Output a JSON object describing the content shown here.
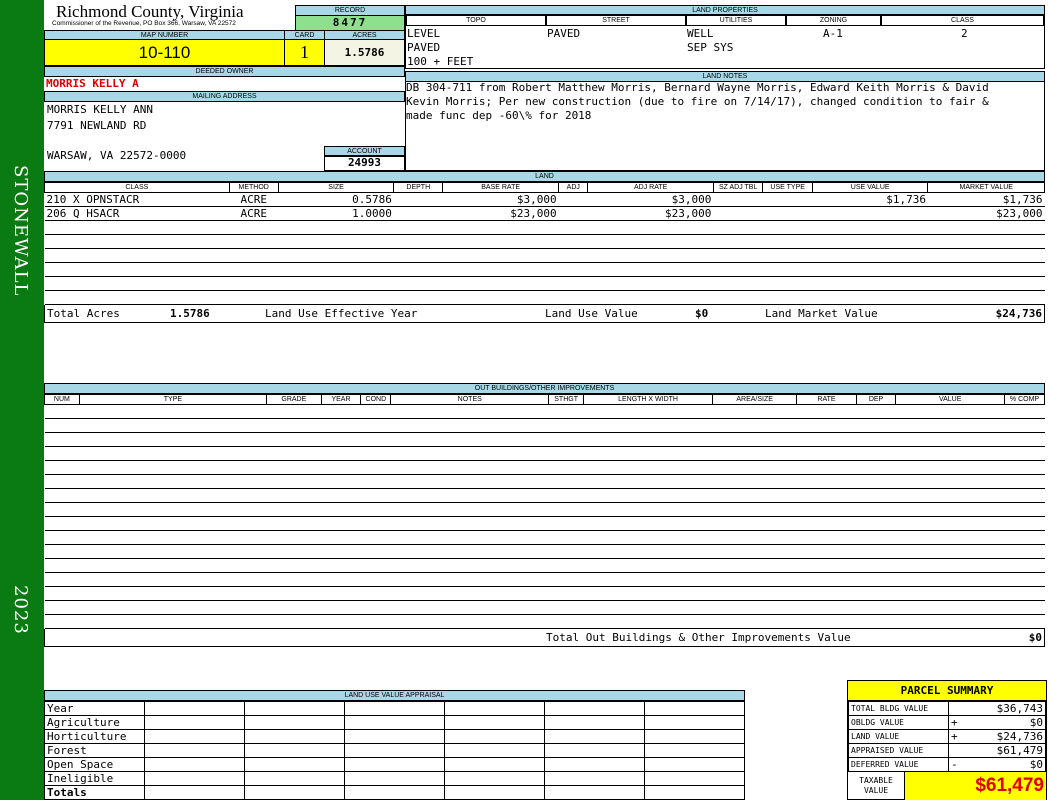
{
  "sidebar": {
    "district": "STONEWALL",
    "year": "2023"
  },
  "header": {
    "county": "Richmond County, Virginia",
    "office": "Commissioner of the Revenue, PO Box 366, Warsaw, VA 22572",
    "record_label": "RECORD",
    "record": "8477",
    "map_label": "MAP NUMBER",
    "map": "10-110",
    "card_label": "CARD",
    "card": "1",
    "acres_label": "ACRES",
    "acres": "1.5786"
  },
  "land_properties": {
    "title": "LAND PROPERTIES",
    "columns": [
      "TOPO",
      "STREET",
      "UTILITIES",
      "ZONING",
      "CLASS"
    ],
    "topo": [
      "LEVEL",
      "PAVED",
      "100 + FEET"
    ],
    "street": "PAVED",
    "utilities": [
      "WELL",
      "SEP SYS"
    ],
    "zoning": "A-1",
    "class": "2"
  },
  "owner": {
    "label": "DEEDED OWNER",
    "name": "MORRIS KELLY A",
    "mailing_label": "MAILING ADDRESS",
    "address": [
      "MORRIS KELLY ANN",
      "7791 NEWLAND RD",
      "",
      "WARSAW, VA 22572-0000"
    ],
    "account_label": "ACCOUNT",
    "account": "24993"
  },
  "land_notes": {
    "title": "LAND NOTES",
    "text": "DB 304-711 from Robert Matthew Morris, Bernard Wayne Morris, Edward Keith Morris & David Kevin Morris; Per new construction (due to fire on 7/14/17), changed condition to fair & made func dep -60\\% for 2018"
  },
  "land": {
    "title": "LAND",
    "columns": [
      "CLASS",
      "METHOD",
      "SIZE",
      "DEPTH",
      "BASE RATE",
      "ADJ",
      "ADJ RATE",
      "SZ ADJ TBL",
      "USE TYPE",
      "USE VALUE",
      "MARKET VALUE"
    ],
    "rows": [
      [
        "210 X OPNSTACR",
        "ACRE",
        "0.5786",
        "",
        "$3,000",
        "",
        "$3,000",
        "",
        "",
        "$1,736",
        "$1,736"
      ],
      [
        "206 Q HSACR",
        "ACRE",
        "1.0000",
        "",
        "$23,000",
        "",
        "$23,000",
        "",
        "",
        "",
        "$23,000"
      ]
    ],
    "total_acres_label": "Total Acres",
    "total_acres": "1.5786",
    "eff_year_label": "Land Use Effective Year",
    "use_value_label": "Land Use Value",
    "use_value": "$0",
    "market_label": "Land Market Value",
    "market": "$24,736"
  },
  "outbuildings": {
    "title": "OUT BUILDINGS/OTHER IMPROVEMENTS",
    "columns": [
      "NUM",
      "TYPE",
      "GRADE",
      "YEAR",
      "COND",
      "NOTES",
      "STHGT",
      "LENGTH X WIDTH",
      "AREA/SIZE",
      "RATE",
      "DEP",
      "VALUE",
      "% COMP"
    ],
    "total_label": "Total Out Buildings & Other Improvements Value",
    "total": "$0"
  },
  "land_use": {
    "title": "LAND USE VALUE APPRAISAL",
    "rows": [
      "Year",
      "Agriculture",
      "Horticulture",
      "Forest",
      "Open Space",
      "Ineligible",
      "Totals"
    ]
  },
  "summary": {
    "title": "PARCEL SUMMARY",
    "rows": [
      {
        "label": "TOTAL BLDG VALUE",
        "op": "",
        "value": "$36,743"
      },
      {
        "label": "OBLDG VALUE",
        "op": "+",
        "value": "$0"
      },
      {
        "label": "LAND VALUE",
        "op": "+",
        "value": "$24,736"
      },
      {
        "label": "APPRAISED VALUE",
        "op": "",
        "value": "$61,479"
      },
      {
        "label": "DEFERRED VALUE",
        "op": "-",
        "value": "$0"
      }
    ],
    "taxable_label": "TAXABLE VALUE",
    "taxable": "$61,479"
  }
}
